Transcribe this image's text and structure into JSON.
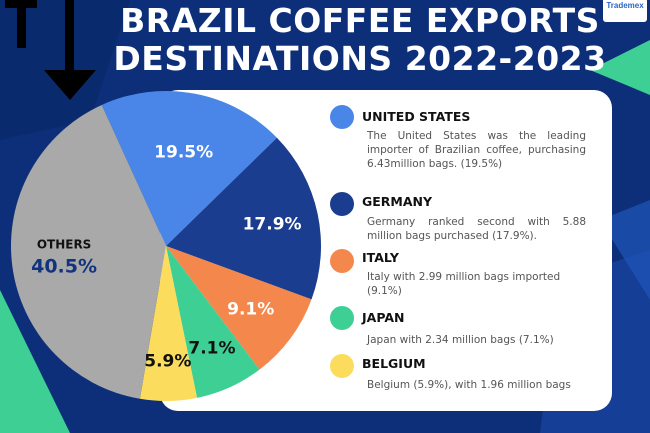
{
  "header": {
    "title_line1": "BRAZIL COFFEE EXPORTS",
    "title_line2": "DESTINATIONS 2022-2023",
    "logo_text": "Trademex"
  },
  "chart_data": {
    "type": "pie",
    "title": "BRAZIL COFFEE EXPORTS DESTINATIONS 2022-2023",
    "slices": [
      {
        "label": "UNITED STATES",
        "value": 19.5,
        "display": "19.5%",
        "color": "#4a86e8"
      },
      {
        "label": "GERMANY",
        "value": 17.9,
        "display": "17.9%",
        "color": "#1a3d8f"
      },
      {
        "label": "ITALY",
        "value": 9.1,
        "display": "9.1%",
        "color": "#f4874b"
      },
      {
        "label": "JAPAN",
        "value": 7.1,
        "display": "7.1%",
        "color": "#3ecf95"
      },
      {
        "label": "BELGIUM",
        "value": 5.9,
        "display": "5.9%",
        "color": "#fbdc5c"
      },
      {
        "label": "OTHERS",
        "value": 40.5,
        "display": "40.5%",
        "color": "#a9a9a9"
      }
    ]
  },
  "legend": [
    {
      "name": "UNITED STATES",
      "color": "#4a86e8",
      "desc": "The United States was the leading importer of Brazilian coffee, purchasing 6.43million bags. (19.5%)"
    },
    {
      "name": "GERMANY",
      "color": "#1a3d8f",
      "desc": "Germany ranked second with 5.88 million bags purchased (17.9%)."
    },
    {
      "name": "ITALY",
      "color": "#f4874b",
      "desc": "Italy with 2.99 million bags imported (9.1%)"
    },
    {
      "name": "JAPAN",
      "color": "#3ecf95",
      "desc": "Japan with 2.34 million bags (7.1%)"
    },
    {
      "name": "BELGIUM",
      "color": "#fbdc5c",
      "desc": "Belgium (5.9%), with 1.96 million bags"
    }
  ]
}
